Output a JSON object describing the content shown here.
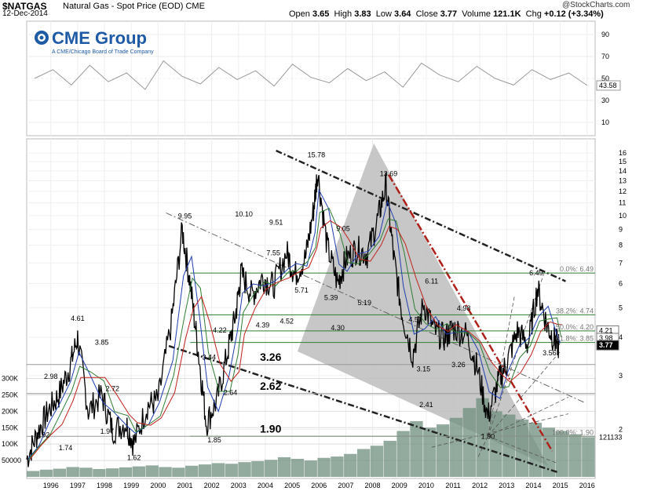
{
  "header": {
    "symbol": "$NATGAS",
    "subtitle": "Natural Gas - Spot Price (EOD)  CME",
    "date": "12-Dec-2014",
    "credit": "@StockCharts.com",
    "ohlc": [
      {
        "label": "Open",
        "value": "3.65"
      },
      {
        "label": "High",
        "value": "3.83"
      },
      {
        "label": "Low",
        "value": "3.64"
      },
      {
        "label": "Close",
        "value": "3.77"
      },
      {
        "label": "Volume",
        "value": "121.1K"
      },
      {
        "label": "Chg",
        "value": "+0.12 (+3.34%)"
      }
    ]
  },
  "logo": {
    "name": "CME Group",
    "tagline": "A CME/Chicago Board of Trade Company"
  },
  "colors": {
    "price": "#000000",
    "ma_fast": "#1f3fb0",
    "ma_mid": "#2e7d32",
    "ma_slow": "#c0201a",
    "volume": "#6f8f7f",
    "rsi": "#999999",
    "triangle": "#bdbdbd",
    "fib": "#2e7d32",
    "downtrend": "#b0201a"
  },
  "chart_data": [
    {
      "type": "line",
      "panel": "indicator",
      "series": [
        {
          "values": [
            50,
            58,
            44,
            62,
            47,
            55,
            40,
            66,
            52,
            45,
            60,
            49,
            57,
            43,
            63,
            51,
            46,
            59,
            48,
            56,
            42,
            64,
            53,
            47,
            61,
            50,
            44,
            58,
            49,
            55,
            43.58
          ]
        }
      ],
      "ylim": [
        0,
        100
      ],
      "y_ticks": [
        "10",
        "30",
        "50",
        "70",
        "90"
      ],
      "last_value_label": "43.58"
    },
    {
      "type": "line",
      "panel": "price",
      "scale": "log",
      "x_ticks": [
        "1996",
        "1997",
        "1998",
        "1999",
        "2000",
        "2001",
        "2002",
        "2003",
        "2004",
        "2005",
        "2006",
        "2007",
        "2008",
        "2009",
        "2010",
        "2011",
        "2012",
        "2013",
        "2014",
        "2015",
        "2016"
      ],
      "y_ticks": [
        "2",
        "3",
        "4",
        "5",
        "6",
        "7",
        "8",
        "9",
        "10",
        "11",
        "12",
        "13",
        "14",
        "15",
        "16"
      ],
      "ylim": [
        1.4,
        17.5
      ],
      "xlim": [
        1995.1,
        2016.3
      ],
      "series": [
        {
          "x": [
            1995.1,
            1995.5,
            1995.9,
            1996.3,
            1996.7,
            1997.0,
            1997.4,
            1997.9,
            1998.3,
            1998.8,
            1999.1,
            1999.6,
            2000.0,
            2000.5,
            2000.9,
            2001.2,
            2001.5,
            2001.8,
            2002.2,
            2002.6,
            2002.9,
            2003.1,
            2003.5,
            2003.9,
            2004.3,
            2004.8,
            2005.1,
            2005.5,
            2005.8,
            2005.95,
            2006.3,
            2006.7,
            2007.0,
            2007.4,
            2007.8,
            2008.2,
            2008.5,
            2008.8,
            2009.1,
            2009.5,
            2009.9,
            2010.3,
            2010.7,
            2011.0,
            2011.5,
            2011.9,
            2012.3,
            2012.7,
            2013.0,
            2013.4,
            2013.8,
            2014.15,
            2014.5,
            2014.8,
            2014.95
          ],
          "values": [
            1.6,
            1.95,
            2.3,
            2.6,
            3.2,
            4.0,
            2.3,
            2.6,
            2.0,
            2.1,
            1.8,
            2.4,
            2.5,
            4.5,
            9.0,
            6.0,
            3.6,
            2.1,
            2.5,
            3.6,
            4.8,
            6.5,
            5.5,
            6.3,
            5.9,
            7.6,
            6.4,
            7.3,
            10.5,
            14.0,
            8.0,
            6.0,
            7.2,
            7.8,
            7.5,
            9.8,
            12.6,
            7.2,
            4.8,
            3.5,
            5.2,
            4.2,
            4.0,
            4.3,
            4.1,
            3.2,
            2.2,
            2.9,
            3.3,
            4.2,
            3.8,
            5.8,
            4.4,
            3.9,
            3.77
          ]
        }
      ],
      "data_labels": [
        {
          "x": 1995.7,
          "y": 1.92,
          "text": "1.92"
        },
        {
          "x": 1996.55,
          "y": 1.74,
          "text": "1.74"
        },
        {
          "x": 1996.0,
          "y": 2.98,
          "text": "2.98"
        },
        {
          "x": 1997.0,
          "y": 4.61,
          "text": "4.61"
        },
        {
          "x": 1997.9,
          "y": 3.85,
          "text": "3.85"
        },
        {
          "x": 1998.3,
          "y": 2.72,
          "text": "2.72"
        },
        {
          "x": 1998.1,
          "y": 1.97,
          "text": "1.97"
        },
        {
          "x": 1999.1,
          "y": 1.62,
          "text": "1.62"
        },
        {
          "x": 2001.0,
          "y": 9.95,
          "text": "9.95"
        },
        {
          "x": 2002.3,
          "y": 4.22,
          "text": "4.22"
        },
        {
          "x": 2001.9,
          "y": 3.44,
          "text": "3.44"
        },
        {
          "x": 2002.7,
          "y": 2.64,
          "text": "2.64"
        },
        {
          "x": 2002.1,
          "y": 1.85,
          "text": "1.85"
        },
        {
          "x": 2003.2,
          "y": 10.1,
          "text": "10.10"
        },
        {
          "x": 2003.9,
          "y": 4.39,
          "text": "4.39"
        },
        {
          "x": 2004.3,
          "y": 7.55,
          "text": "7.55"
        },
        {
          "x": 2004.4,
          "y": 9.51,
          "text": "9.51"
        },
        {
          "x": 2004.8,
          "y": 4.52,
          "text": "4.52"
        },
        {
          "x": 2005.35,
          "y": 5.71,
          "text": "5.71"
        },
        {
          "x": 2005.9,
          "y": 15.78,
          "text": "15.78"
        },
        {
          "x": 2006.9,
          "y": 9.05,
          "text": "9.05"
        },
        {
          "x": 2006.45,
          "y": 5.39,
          "text": "5.39"
        },
        {
          "x": 2006.7,
          "y": 4.3,
          "text": "4.30"
        },
        {
          "x": 2007.7,
          "y": 5.19,
          "text": "5.19"
        },
        {
          "x": 2008.6,
          "y": 13.69,
          "text": "13.69"
        },
        {
          "x": 2009.6,
          "y": 4.57,
          "text": "4.57"
        },
        {
          "x": 2009.9,
          "y": 3.15,
          "text": "3.15"
        },
        {
          "x": 2010.0,
          "y": 2.41,
          "text": "2.41"
        },
        {
          "x": 2010.2,
          "y": 6.11,
          "text": "6.11"
        },
        {
          "x": 2011.4,
          "y": 4.98,
          "text": "4.98"
        },
        {
          "x": 2011.2,
          "y": 3.26,
          "text": "3.26"
        },
        {
          "x": 2012.3,
          "y": 1.9,
          "text": "1.90"
        },
        {
          "x": 2014.1,
          "y": 6.49,
          "text": "6.49"
        },
        {
          "x": 2014.6,
          "y": 3.56,
          "text": "3.56"
        }
      ],
      "support_levels": [
        {
          "value": 3.26,
          "text": "3.26"
        },
        {
          "value": 2.62,
          "text": "2.62"
        },
        {
          "value": 1.9,
          "text": "1.90"
        }
      ],
      "fibonacci": [
        {
          "value": 6.49,
          "text": "0.0%: 6.49"
        },
        {
          "value": 4.74,
          "text": "38.2%: 4.74"
        },
        {
          "value": 4.2,
          "text": "50.0%: 4.20"
        },
        {
          "value": 3.85,
          "text": "61.8%: 3.85"
        },
        {
          "value": 1.9,
          "text": "100.0%: 1.90"
        }
      ],
      "right_axis_labels": [
        "4.21",
        "3.98",
        "3.77"
      ]
    },
    {
      "type": "bar",
      "panel": "volume",
      "y_ticks": [
        "50000",
        "100K",
        "150K",
        "200K",
        "250K",
        "300K"
      ],
      "ylim": [
        0,
        330000
      ],
      "last_value_label": "121133",
      "values": [
        18000,
        22000,
        25000,
        30000,
        28000,
        24000,
        26000,
        29000,
        32000,
        35000,
        30000,
        28000,
        34000,
        38000,
        42000,
        40000,
        45000,
        48000,
        52000,
        60000,
        55000,
        50000,
        58000,
        62000,
        70000,
        85000,
        95000,
        110000,
        140000,
        170000,
        150000,
        160000,
        180000,
        210000,
        240000,
        200000,
        190000,
        175000,
        165000,
        150000,
        140000,
        130000,
        121133
      ]
    }
  ]
}
